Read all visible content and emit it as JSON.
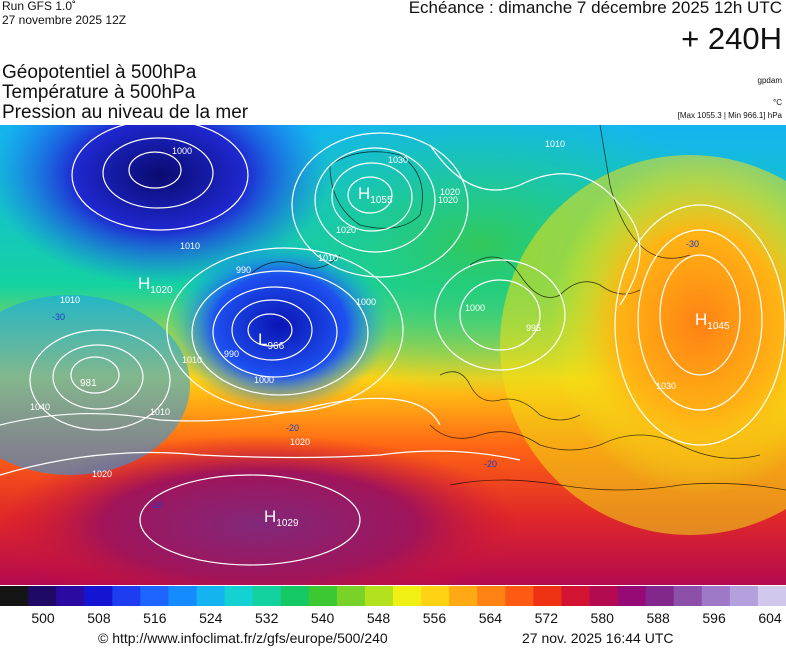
{
  "header": {
    "run": "Run GFS 1.0˚",
    "date": "27 novembre 2025 12Z",
    "echeance": "Echéance : dimanche 7 décembre 2025 12h UTC",
    "horizon": "+ 240H"
  },
  "parameters": [
    "Géopotentiel à 500hPa",
    "Température à 500hPa",
    "Pression au niveau de la mer"
  ],
  "units": {
    "geopotential": "gpdam",
    "temperature": "°C",
    "pressure": "[Max 1055.3 | Min 966.1] hPa"
  },
  "colors": {
    "isobars": "#ffffff",
    "low_core": "#0a0a8c",
    "high_core": "#ff7a00",
    "coastlines": "#000000"
  },
  "map": {
    "centers": [
      {
        "type": "H",
        "value": "1055"
      },
      {
        "type": "H",
        "value": "1020"
      },
      {
        "type": "L",
        "value": "966"
      },
      {
        "type": "L",
        "value": "981"
      },
      {
        "type": "H",
        "value": "1045"
      },
      {
        "type": "H",
        "value": "1029"
      }
    ],
    "isobar_labels": [
      "1000",
      "1030",
      "1010",
      "1020",
      "1010",
      "990",
      "1010",
      "1020",
      "1000",
      "995",
      "1010",
      "990",
      "1000",
      "1010",
      "1020",
      "1030",
      "1010",
      "1020",
      "1020",
      "1000",
      "1040"
    ],
    "temperature_labels": [
      "-30",
      "-20",
      "-20",
      "-10",
      "-30"
    ]
  },
  "colorbar": {
    "ticks": [
      "500",
      "508",
      "516",
      "524",
      "532",
      "540",
      "548",
      "556",
      "564",
      "572",
      "580",
      "588",
      "596",
      "604"
    ],
    "colors": [
      "#141414",
      "#1e0a64",
      "#2a0aa0",
      "#1414d2",
      "#1e3cf0",
      "#1e64ff",
      "#148cff",
      "#14b4f0",
      "#14d2d2",
      "#14d2a0",
      "#14c864",
      "#3cc832",
      "#78d228",
      "#b4e11e",
      "#f0f014",
      "#ffd214",
      "#ffaa14",
      "#ff8214",
      "#ff5a14",
      "#f03214",
      "#d21432",
      "#b40a50",
      "#960a78",
      "#82288c",
      "#8c50aa",
      "#a078c8",
      "#b4a0dc",
      "#d2c8eb"
    ]
  },
  "footer": {
    "url": "© http://www.infoclimat.fr/z/gfs/europe/500/240",
    "timestamp": "27 nov. 2025 16:44 UTC"
  }
}
